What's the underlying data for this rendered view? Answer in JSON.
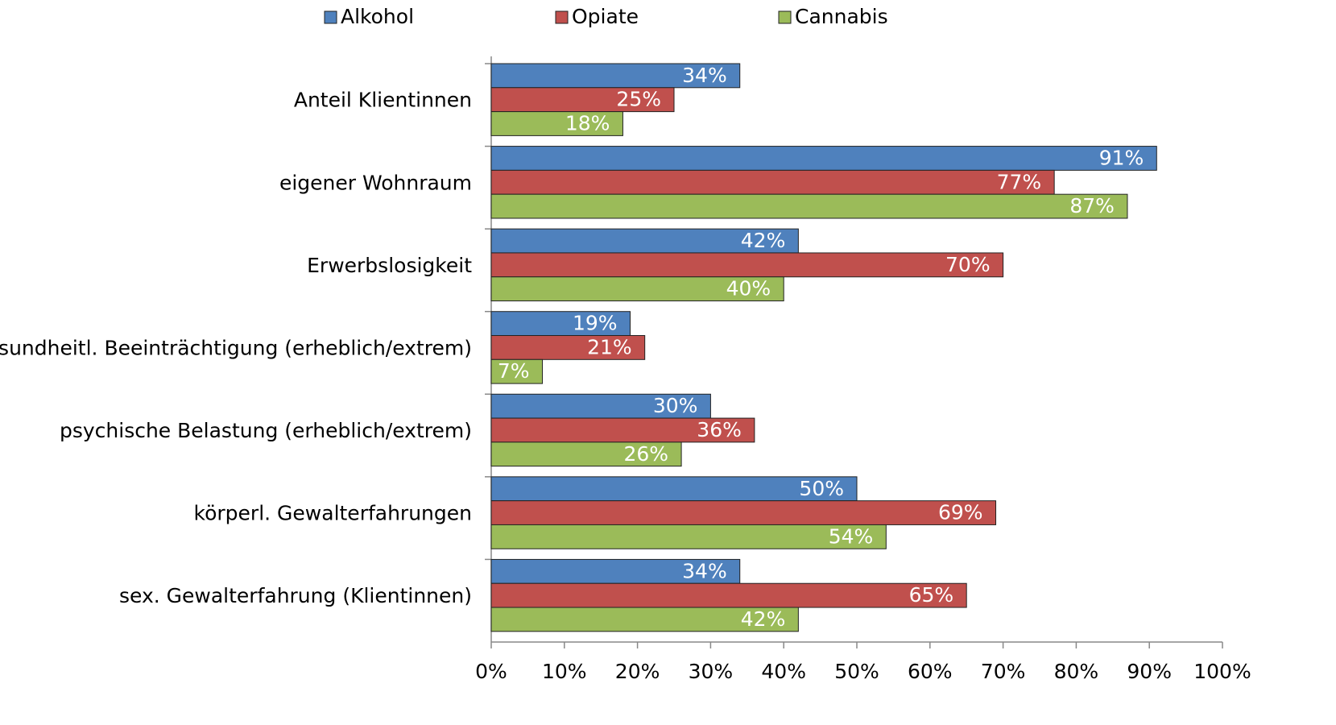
{
  "chart_data": {
    "type": "bar",
    "orientation": "horizontal",
    "categories": [
      "Anteil Klientinnen",
      "eigener Wohnraum",
      "Erwerbslosigkeit",
      "gesundheitl. Beeinträchtigung (erheblich/extrem)",
      "psychische Belastung (erheblich/extrem)",
      "körperl. Gewalterfahrungen",
      "sex. Gewalterfahrung (Klientinnen)"
    ],
    "series": [
      {
        "name": "Alkohol",
        "color": "#4f81bd",
        "values": [
          34,
          91,
          42,
          19,
          30,
          50,
          34
        ],
        "value_labels": [
          "34%",
          "91%",
          "42%",
          "19%",
          "30%",
          "50%",
          "34%"
        ]
      },
      {
        "name": "Opiate",
        "color": "#c0504d",
        "values": [
          25,
          77,
          70,
          21,
          36,
          69,
          65
        ],
        "value_labels": [
          "25%",
          "77%",
          "70%",
          "21%",
          "36%",
          "69%",
          "65%"
        ]
      },
      {
        "name": "Cannabis",
        "color": "#9bbb59",
        "values": [
          18,
          87,
          40,
          7,
          26,
          54,
          42
        ],
        "value_labels": [
          "18%",
          "87%",
          "40%",
          "7%",
          "26%",
          "54%",
          "42%"
        ]
      }
    ],
    "xlim": [
      0,
      100
    ],
    "xticks": [
      {
        "value": 0,
        "label": "0%"
      },
      {
        "value": 10,
        "label": "10%"
      },
      {
        "value": 20,
        "label": "20%"
      },
      {
        "value": 30,
        "label": "30%"
      },
      {
        "value": 40,
        "label": "40%"
      },
      {
        "value": 50,
        "label": "50%"
      },
      {
        "value": 60,
        "label": "60%"
      },
      {
        "value": 70,
        "label": "70%"
      },
      {
        "value": 80,
        "label": "80%"
      },
      {
        "value": 90,
        "label": "90%"
      },
      {
        "value": 100,
        "label": "100%"
      }
    ],
    "legend": "top",
    "grid": false
  }
}
